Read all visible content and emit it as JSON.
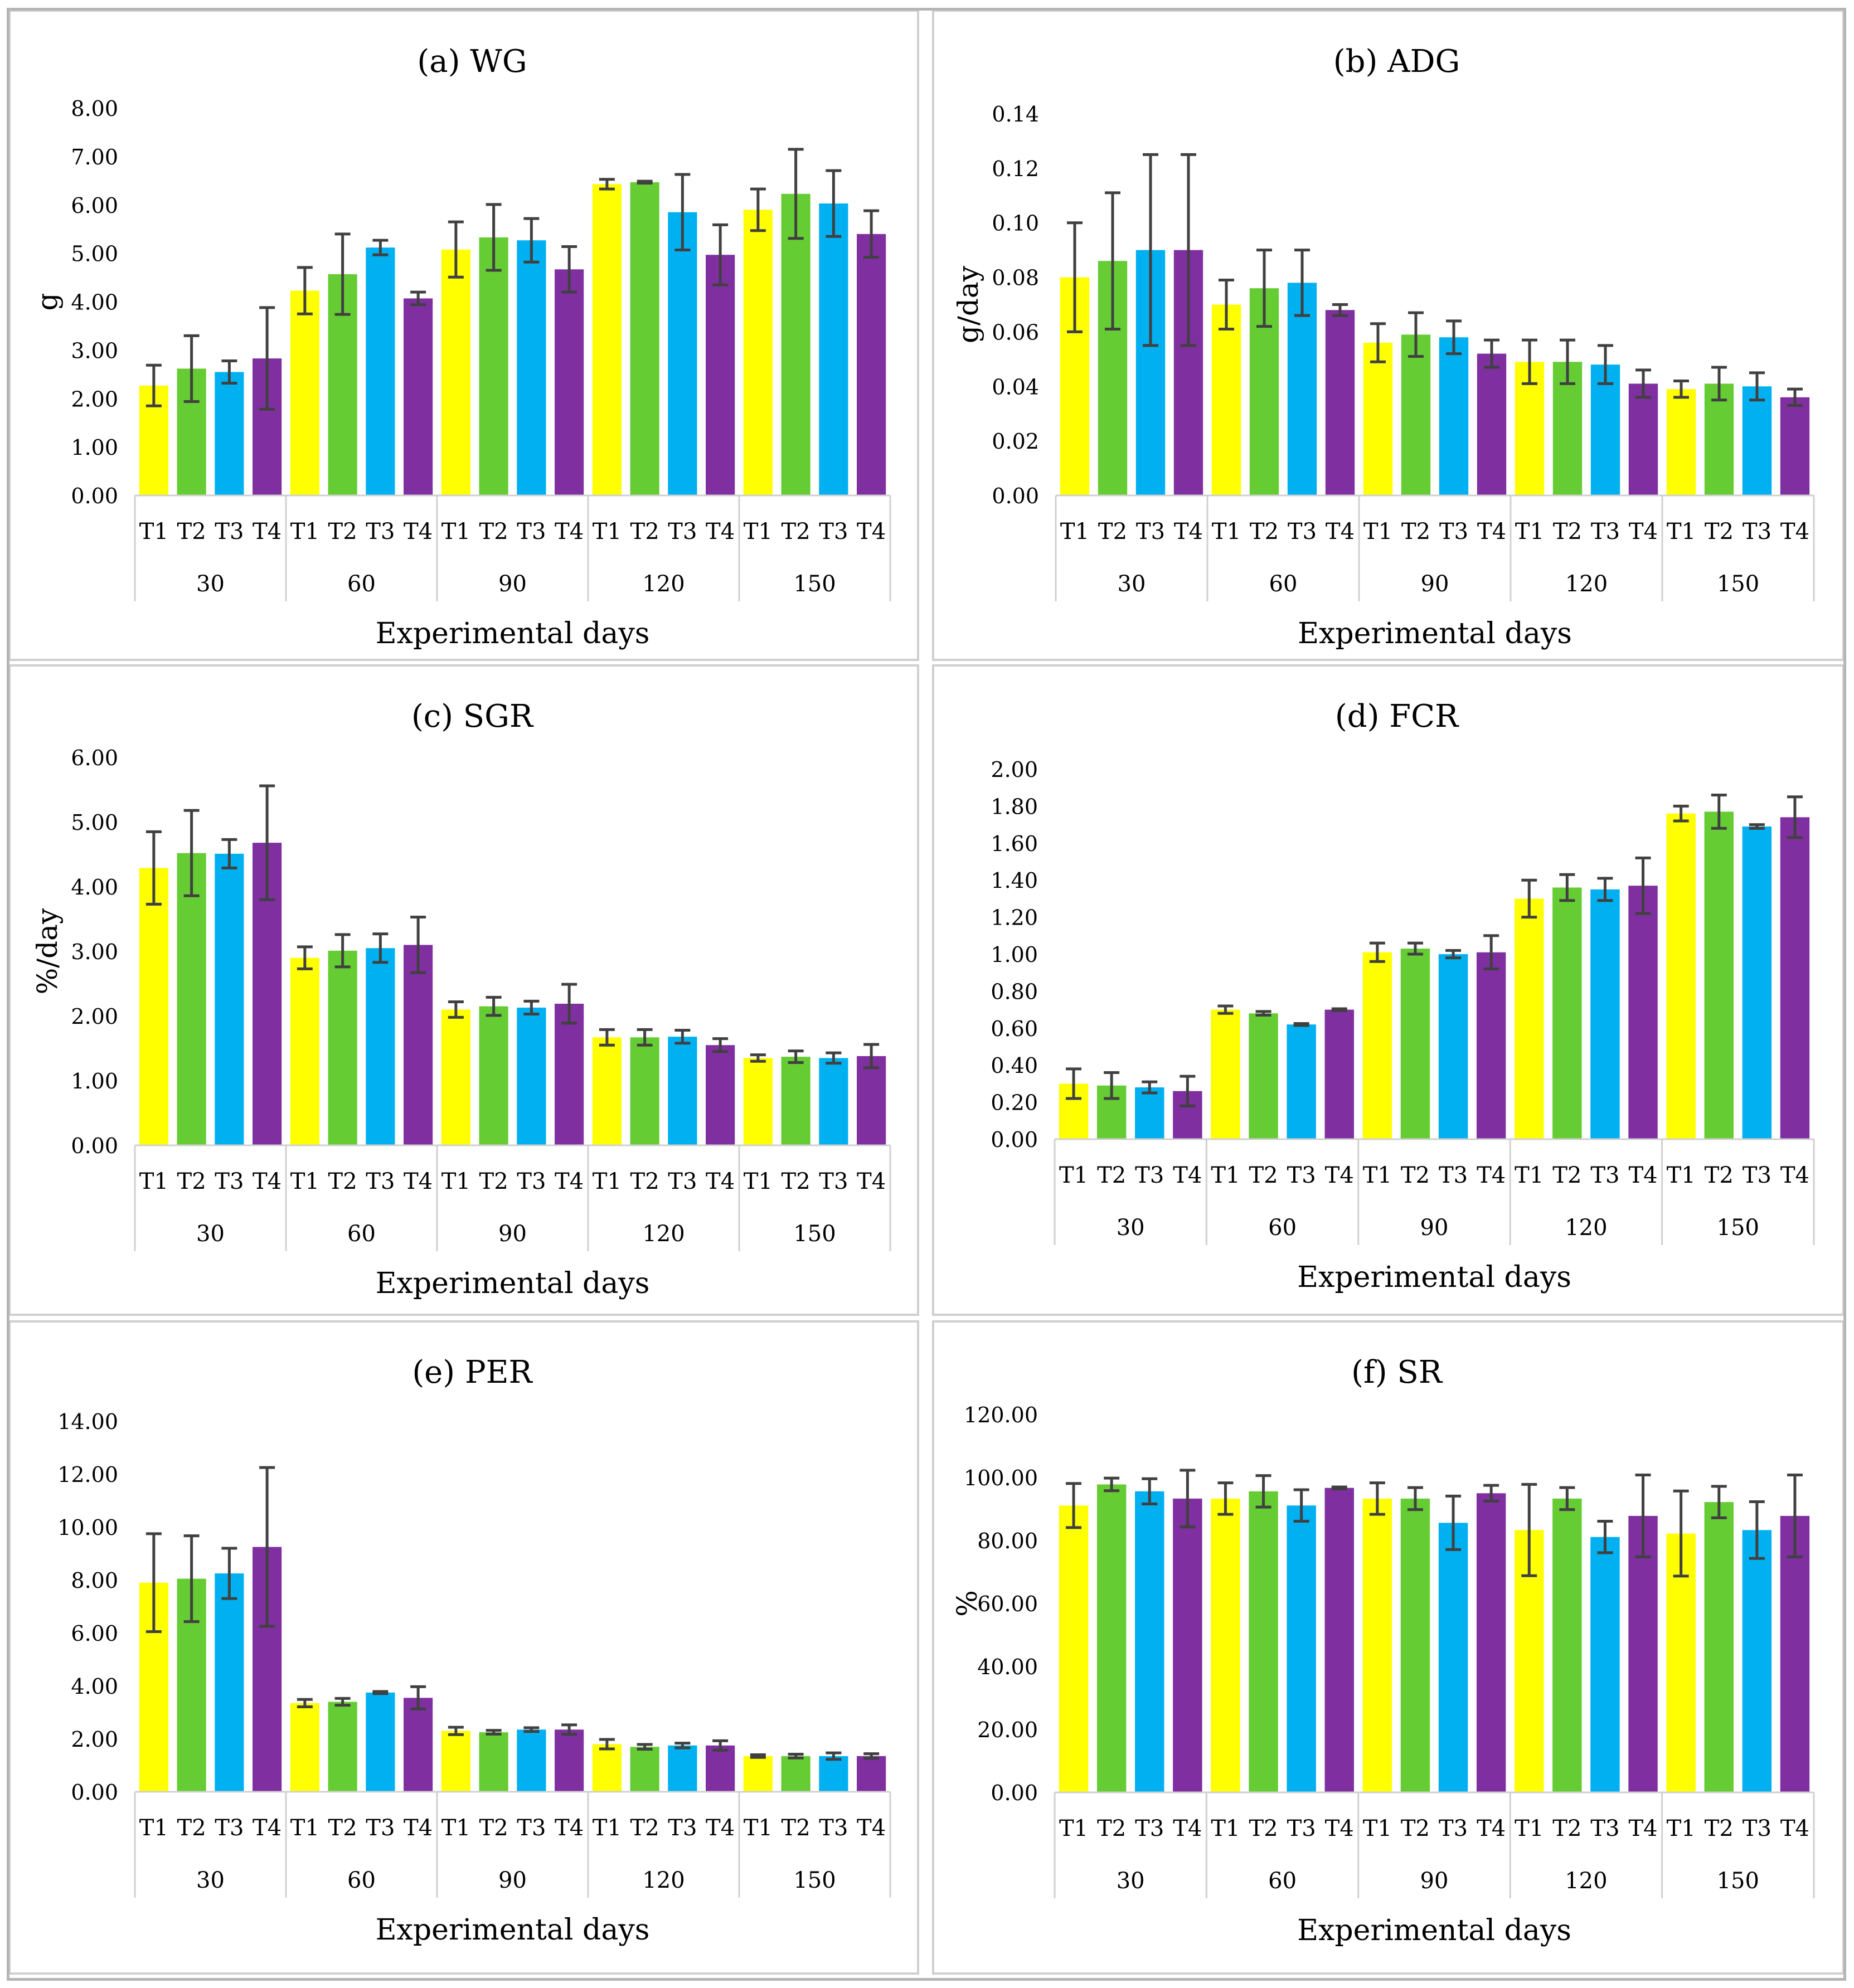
{
  "treatment_colors": {
    "T1": "#ffff00",
    "T2": "#66cc33",
    "T3": "#00b0f0",
    "T4": "#7f2fa0"
  },
  "error_bar_color": "#404040",
  "chart_data": [
    {
      "type": "bar",
      "title": "(a) WG",
      "xlabel": "Experimental days",
      "ylabel": "g",
      "ylim": [
        0,
        8
      ],
      "ytick_step": 1,
      "ytick_labels": [
        "0.00",
        "1.00",
        "2.00",
        "3.00",
        "4.00",
        "5.00",
        "6.00",
        "7.00",
        "8.00"
      ],
      "groups": [
        "30",
        "60",
        "90",
        "120",
        "150"
      ],
      "treatments": [
        "T1",
        "T2",
        "T3",
        "T4"
      ],
      "values": [
        [
          2.27,
          2.62,
          2.55,
          2.83
        ],
        [
          4.23,
          4.57,
          5.12,
          4.07
        ],
        [
          5.08,
          5.33,
          5.27,
          4.67
        ],
        [
          6.43,
          6.47,
          5.85,
          4.97
        ],
        [
          5.9,
          6.23,
          6.03,
          5.4
        ]
      ],
      "errors": [
        [
          0.42,
          0.68,
          0.23,
          1.05
        ],
        [
          0.48,
          0.83,
          0.15,
          0.13
        ],
        [
          0.57,
          0.68,
          0.45,
          0.47
        ],
        [
          0.1,
          0.02,
          0.78,
          0.62
        ],
        [
          0.43,
          0.92,
          0.68,
          0.48
        ]
      ]
    },
    {
      "type": "bar",
      "title": "(b) ADG",
      "xlabel": "Experimental days",
      "ylabel": "g/day",
      "ylim": [
        0,
        0.14
      ],
      "ytick_step": 0.02,
      "ytick_labels": [
        "0.00",
        "0.02",
        "0.04",
        "0.06",
        "0.08",
        "0.10",
        "0.12",
        "0.14"
      ],
      "groups": [
        "30",
        "60",
        "90",
        "120",
        "150"
      ],
      "treatments": [
        "T1",
        "T2",
        "T3",
        "T4"
      ],
      "values": [
        [
          0.08,
          0.086,
          0.09,
          0.09
        ],
        [
          0.07,
          0.076,
          0.078,
          0.068
        ],
        [
          0.056,
          0.059,
          0.058,
          0.052
        ],
        [
          0.049,
          0.049,
          0.048,
          0.041
        ],
        [
          0.039,
          0.041,
          0.04,
          0.036
        ]
      ],
      "errors": [
        [
          0.02,
          0.025,
          0.035,
          0.035
        ],
        [
          0.009,
          0.014,
          0.012,
          0.002
        ],
        [
          0.007,
          0.008,
          0.006,
          0.005
        ],
        [
          0.008,
          0.008,
          0.007,
          0.005
        ],
        [
          0.003,
          0.006,
          0.005,
          0.003
        ]
      ]
    },
    {
      "type": "bar",
      "title": "(c) SGR",
      "xlabel": "Experimental days",
      "ylabel": "%/day",
      "ylim": [
        0,
        6
      ],
      "ytick_step": 1,
      "ytick_labels": [
        "0.00",
        "1.00",
        "2.00",
        "3.00",
        "4.00",
        "5.00",
        "6.00"
      ],
      "groups": [
        "30",
        "60",
        "90",
        "120",
        "150"
      ],
      "treatments": [
        "T1",
        "T2",
        "T3",
        "T4"
      ],
      "values": [
        [
          4.29,
          4.52,
          4.51,
          4.68
        ],
        [
          2.9,
          3.01,
          3.05,
          3.1
        ],
        [
          2.1,
          2.15,
          2.13,
          2.19
        ],
        [
          1.67,
          1.67,
          1.68,
          1.55
        ],
        [
          1.35,
          1.37,
          1.35,
          1.38
        ]
      ],
      "errors": [
        [
          0.56,
          0.66,
          0.22,
          0.88
        ],
        [
          0.17,
          0.25,
          0.22,
          0.43
        ],
        [
          0.12,
          0.14,
          0.1,
          0.3
        ],
        [
          0.12,
          0.12,
          0.1,
          0.1
        ],
        [
          0.05,
          0.09,
          0.08,
          0.18
        ]
      ]
    },
    {
      "type": "bar",
      "title": "(d) FCR",
      "xlabel": "Experimental days",
      "ylabel": "",
      "ylim": [
        0,
        2
      ],
      "ytick_step": 0.2,
      "ytick_labels": [
        "0.00",
        "0.20",
        "0.40",
        "0.60",
        "0.80",
        "1.00",
        "1.20",
        "1.40",
        "1.60",
        "1.80",
        "2.00"
      ],
      "groups": [
        "30",
        "60",
        "90",
        "120",
        "150"
      ],
      "treatments": [
        "T1",
        "T2",
        "T3",
        "T4"
      ],
      "values": [
        [
          0.3,
          0.29,
          0.28,
          0.26
        ],
        [
          0.7,
          0.68,
          0.62,
          0.7
        ],
        [
          1.01,
          1.03,
          1.0,
          1.01
        ],
        [
          1.3,
          1.36,
          1.35,
          1.37
        ],
        [
          1.76,
          1.77,
          1.69,
          1.74
        ]
      ],
      "errors": [
        [
          0.08,
          0.07,
          0.03,
          0.08
        ],
        [
          0.02,
          0.01,
          0.005,
          0.005
        ],
        [
          0.05,
          0.03,
          0.02,
          0.09
        ],
        [
          0.1,
          0.07,
          0.06,
          0.15
        ],
        [
          0.04,
          0.09,
          0.01,
          0.11
        ]
      ]
    },
    {
      "type": "bar",
      "title": "(e) PER",
      "xlabel": "Experimental days",
      "ylabel": "",
      "ylim": [
        0,
        14
      ],
      "ytick_step": 2,
      "ytick_labels": [
        "0.00",
        "2.00",
        "4.00",
        "6.00",
        "8.00",
        "10.00",
        "12.00",
        "14.00"
      ],
      "groups": [
        "30",
        "60",
        "90",
        "120",
        "150"
      ],
      "treatments": [
        "T1",
        "T2",
        "T3",
        "T4"
      ],
      "values": [
        [
          7.9,
          8.05,
          8.25,
          9.25
        ],
        [
          3.35,
          3.4,
          3.75,
          3.55
        ],
        [
          2.3,
          2.25,
          2.35,
          2.35
        ],
        [
          1.8,
          1.7,
          1.75,
          1.75
        ],
        [
          1.35,
          1.35,
          1.35,
          1.35
        ]
      ],
      "errors": [
        [
          1.85,
          1.62,
          0.95,
          3.0
        ],
        [
          0.14,
          0.13,
          0.04,
          0.42
        ],
        [
          0.14,
          0.07,
          0.07,
          0.18
        ],
        [
          0.18,
          0.09,
          0.09,
          0.18
        ],
        [
          0.05,
          0.07,
          0.12,
          0.09
        ]
      ]
    },
    {
      "type": "bar",
      "title": "(f) SR",
      "xlabel": "Experimental days",
      "ylabel": "%",
      "ylim": [
        0,
        120
      ],
      "ytick_step": 20,
      "ytick_labels": [
        "0.00",
        "20.00",
        "40.00",
        "60.00",
        "80.00",
        "100.00",
        "120.00"
      ],
      "groups": [
        "30",
        "60",
        "90",
        "120",
        "150"
      ],
      "treatments": [
        "T1",
        "T2",
        "T3",
        "T4"
      ],
      "values": [
        [
          91.1,
          97.8,
          95.6,
          93.3
        ],
        [
          93.3,
          95.6,
          91.1,
          96.7
        ],
        [
          93.3,
          93.3,
          85.6,
          95.0
        ],
        [
          83.3,
          93.3,
          81.1,
          87.8
        ],
        [
          82.2,
          92.2,
          83.3,
          87.8
        ]
      ],
      "errors": [
        [
          7.0,
          2.0,
          4.0,
          9.0
        ],
        [
          5.0,
          5.0,
          5.0,
          0.3
        ],
        [
          5.0,
          3.5,
          8.5,
          2.5
        ],
        [
          14.5,
          3.5,
          5.0,
          13.0
        ],
        [
          13.5,
          5.0,
          9.0,
          13.0
        ]
      ]
    }
  ]
}
